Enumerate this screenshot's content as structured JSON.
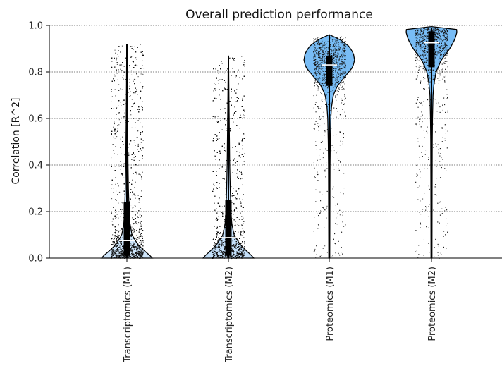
{
  "chart_data": {
    "type": "violin",
    "title": "Overall prediction performance",
    "ylabel": "Correlation [R^2]",
    "xlabel": "",
    "ylim": [
      0,
      1.0
    ],
    "yticks": [
      "0.0",
      "0.2",
      "0.4",
      "0.6",
      "0.8",
      "1.0"
    ],
    "grid": "horizontal-dotted",
    "categories": [
      "Transcriptomics (M1)",
      "Transcriptomics (M2)",
      "Proteomics (M1)",
      "Proteomics (M2)"
    ],
    "series": [
      {
        "category": "Transcriptomics (M1)",
        "color": "#cfe6fb",
        "median": 0.075,
        "q1": 0.01,
        "q3": 0.24,
        "whisker_low": 0.0,
        "whisker_high": 0.92,
        "point_max": 0.92,
        "profile": [
          [
            0.0,
            1.0
          ],
          [
            0.01,
            0.92
          ],
          [
            0.03,
            0.7
          ],
          [
            0.06,
            0.42
          ],
          [
            0.1,
            0.2
          ],
          [
            0.15,
            0.12
          ],
          [
            0.2,
            0.09
          ],
          [
            0.3,
            0.06
          ],
          [
            0.4,
            0.045
          ],
          [
            0.5,
            0.035
          ],
          [
            0.6,
            0.025
          ],
          [
            0.7,
            0.018
          ],
          [
            0.8,
            0.012
          ],
          [
            0.9,
            0.006
          ],
          [
            0.92,
            0.0
          ]
        ]
      },
      {
        "category": "Transcriptomics (M2)",
        "color": "#c4e0fa",
        "median": 0.088,
        "q1": 0.01,
        "q3": 0.25,
        "whisker_low": 0.0,
        "whisker_high": 0.87,
        "point_max": 0.87,
        "profile": [
          [
            0.0,
            1.0
          ],
          [
            0.01,
            0.92
          ],
          [
            0.03,
            0.72
          ],
          [
            0.06,
            0.45
          ],
          [
            0.1,
            0.22
          ],
          [
            0.15,
            0.13
          ],
          [
            0.2,
            0.1
          ],
          [
            0.3,
            0.07
          ],
          [
            0.4,
            0.05
          ],
          [
            0.5,
            0.04
          ],
          [
            0.6,
            0.03
          ],
          [
            0.7,
            0.02
          ],
          [
            0.8,
            0.012
          ],
          [
            0.87,
            0.0
          ]
        ]
      },
      {
        "category": "Proteomics (M1)",
        "color": "#78bcf5",
        "median": 0.83,
        "q1": 0.74,
        "q3": 0.87,
        "whisker_low": 0.0,
        "whisker_high": 0.96,
        "point_max": 0.96,
        "profile": [
          [
            0.0,
            0.02
          ],
          [
            0.2,
            0.025
          ],
          [
            0.4,
            0.03
          ],
          [
            0.5,
            0.04
          ],
          [
            0.6,
            0.06
          ],
          [
            0.65,
            0.09
          ],
          [
            0.7,
            0.16
          ],
          [
            0.74,
            0.32
          ],
          [
            0.78,
            0.62
          ],
          [
            0.82,
            0.92
          ],
          [
            0.85,
            1.0
          ],
          [
            0.88,
            0.95
          ],
          [
            0.91,
            0.78
          ],
          [
            0.94,
            0.42
          ],
          [
            0.96,
            0.0
          ]
        ]
      },
      {
        "category": "Proteomics (M2)",
        "color": "#78bcf5",
        "median": 0.925,
        "q1": 0.82,
        "q3": 0.975,
        "whisker_low": 0.0,
        "whisker_high": 0.99,
        "point_max": 0.99,
        "profile": [
          [
            0.0,
            0.02
          ],
          [
            0.3,
            0.025
          ],
          [
            0.5,
            0.03
          ],
          [
            0.6,
            0.04
          ],
          [
            0.7,
            0.06
          ],
          [
            0.75,
            0.1
          ],
          [
            0.8,
            0.18
          ],
          [
            0.85,
            0.38
          ],
          [
            0.9,
            0.72
          ],
          [
            0.94,
            0.92
          ],
          [
            0.97,
            1.0
          ],
          [
            0.99,
            0.98
          ],
          [
            0.995,
            0.0
          ]
        ]
      }
    ]
  }
}
